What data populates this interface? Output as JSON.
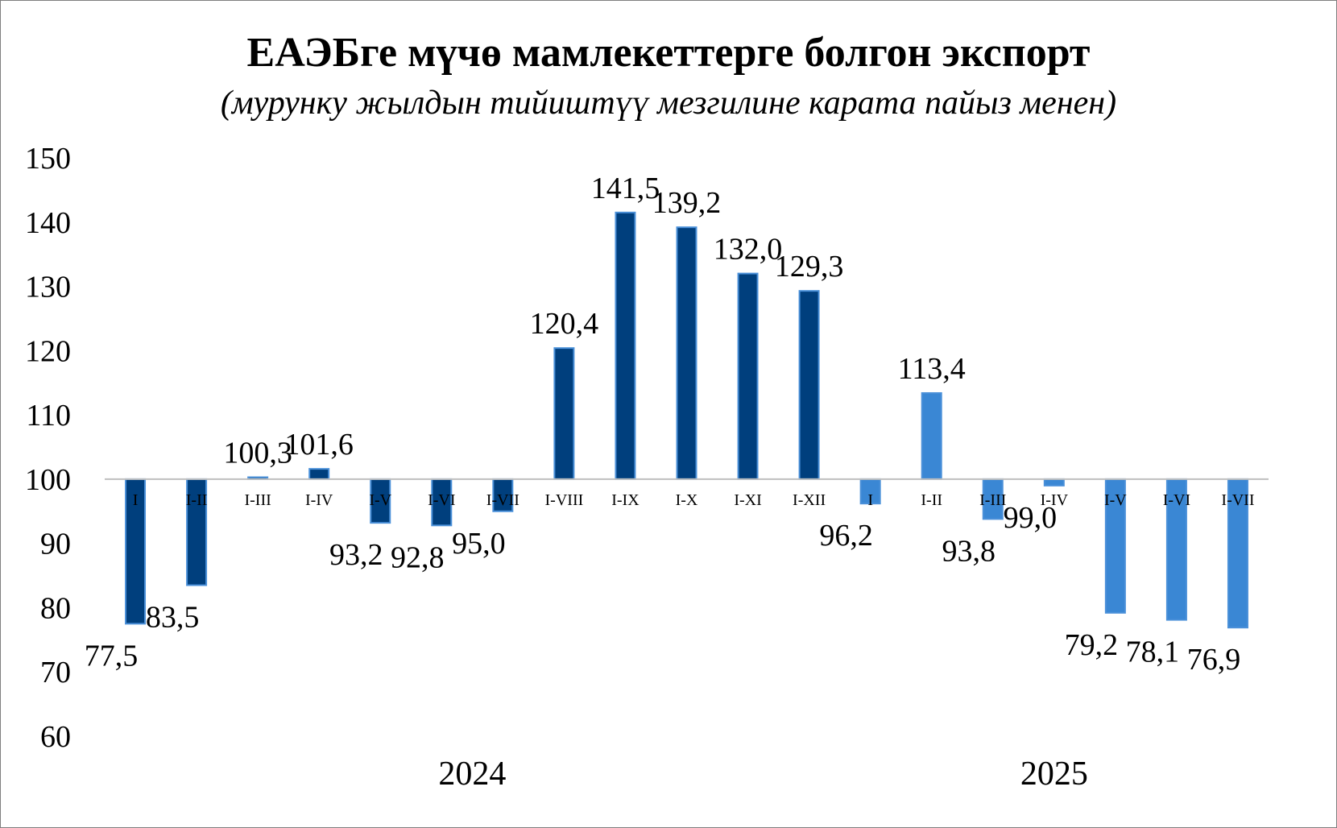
{
  "chart_data": {
    "type": "bar",
    "title": "ЕАЭБге мүчө мамлекеттерге болгон экспорт",
    "subtitle": "(мурунку жылдын тийиштүү  мезгилине карата пайыз менен)",
    "baseline": 100,
    "ylim": [
      60,
      150
    ],
    "yticks": [
      "60",
      "70",
      "80",
      "90",
      "100",
      "110",
      "120",
      "130",
      "140",
      "150"
    ],
    "grid": false,
    "groups": [
      {
        "year": "2024",
        "color": "#003f7d",
        "categories": [
          "I",
          "I-II",
          "I-III",
          "I-IV",
          "I-V",
          "I-VI",
          "I-VII",
          "I-VIII",
          "I-IX",
          "I-X",
          "I-XI",
          "I-XII"
        ],
        "values": [
          77.5,
          83.5,
          100.3,
          101.6,
          93.2,
          92.8,
          95.0,
          120.4,
          141.5,
          139.2,
          132.0,
          129.3
        ],
        "labels": [
          "77,5",
          "83,5",
          "100,3",
          "101,6",
          "93,2",
          "92,8",
          "95,0",
          "120,4",
          "141,5",
          "139,2",
          "132,0",
          "129,3"
        ]
      },
      {
        "year": "2025",
        "color": "#3a87d4",
        "categories": [
          "I",
          "I-II",
          "I-III",
          "I-IV",
          "I-V",
          "I-VI",
          "I-VII"
        ],
        "values": [
          96.2,
          113.4,
          93.8,
          99.0,
          79.2,
          78.1,
          76.9
        ],
        "labels": [
          "96,2",
          "113,4",
          "93,8",
          "99,0",
          "79,2",
          "78,1",
          "76,9"
        ]
      }
    ]
  }
}
